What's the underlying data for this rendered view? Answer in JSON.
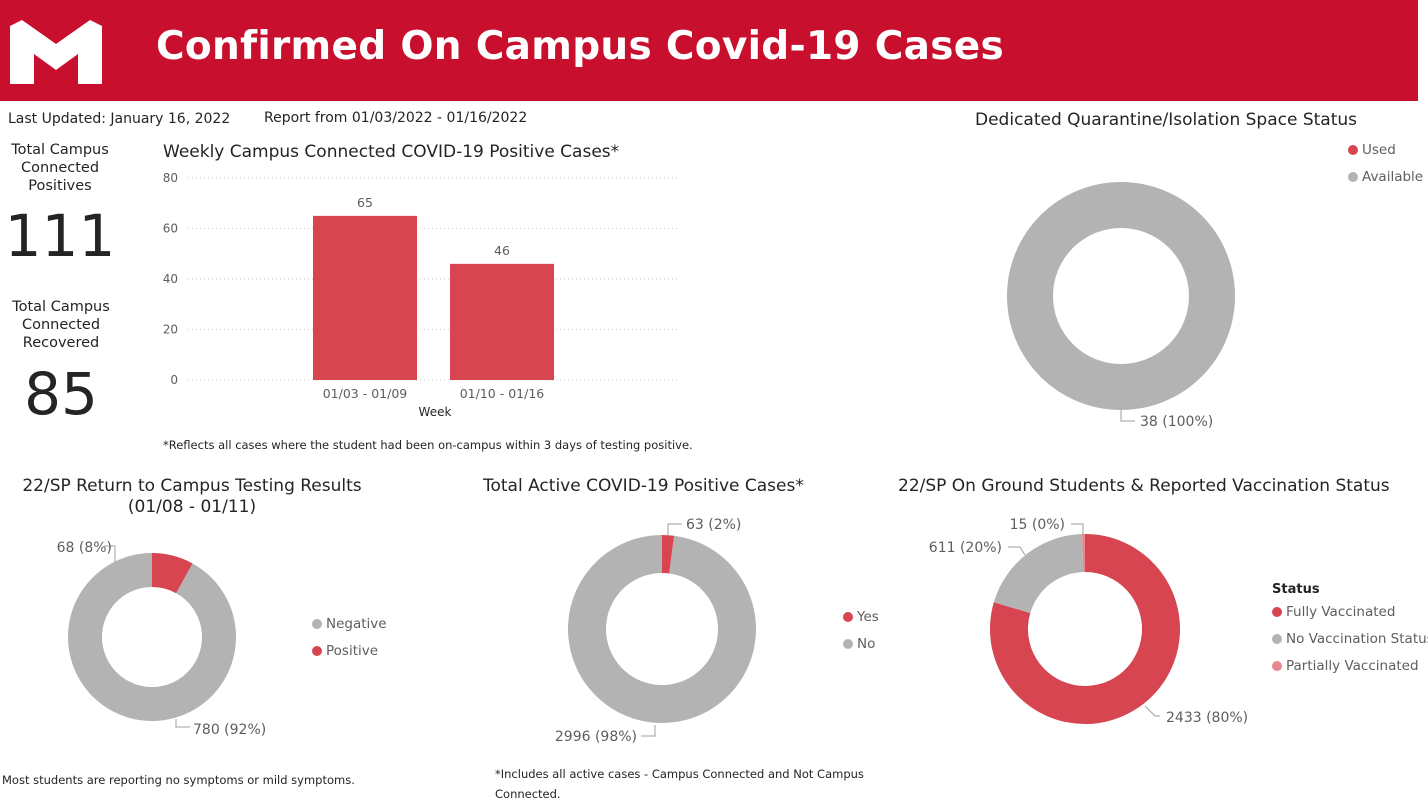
{
  "header": {
    "title": "Confirmed On Campus Covid-19 Cases",
    "logo_icon": "m-logo",
    "brand_color": "#c8102e"
  },
  "meta": {
    "last_updated": "Last Updated: January 16, 2022",
    "report_range": "Report from 01/03/2022 - 01/16/2022"
  },
  "kpis": [
    {
      "label_lines": [
        "Total Campus",
        "Connected",
        "Positives"
      ],
      "value": "111"
    },
    {
      "label_lines": [
        "Total Campus",
        "Connected",
        "Recovered"
      ],
      "value": "85"
    }
  ],
  "notes": {
    "weekly_footnote": "*Reflects all cases where the student had been on-campus within 3 days of testing positive.",
    "symptoms": "Most students are reporting no symptoms or mild symptoms.",
    "active_footnote_lines": [
      "*Includes all active cases - Campus Connected and Not Campus",
      "Connected."
    ]
  },
  "colors": {
    "red": "#d64550",
    "gray": "#b3b3b3",
    "pink": "#e8878f"
  },
  "chart_data": [
    {
      "type": "bar",
      "title": "Weekly Campus Connected COVID-19 Positive Cases*",
      "xlabel": "Week",
      "ylabel": "",
      "categories": [
        "01/03 - 01/09",
        "01/10 - 01/16"
      ],
      "values": [
        65,
        46
      ],
      "ylim": [
        0,
        80
      ],
      "yticks": [
        0,
        20,
        40,
        60,
        80
      ],
      "grid": true,
      "color": "#d64550"
    },
    {
      "type": "pie",
      "title": "Dedicated Quarantine/Isolation Space Status",
      "legend": [
        "Used",
        "Available"
      ],
      "legend_colors": [
        "#d64550",
        "#b3b3b3"
      ],
      "legend_position": "top-right",
      "slices": [
        {
          "name": "Available",
          "value": 38,
          "label": "38 (100%)",
          "color": "#b3b3b3"
        }
      ]
    },
    {
      "type": "pie",
      "title_lines": [
        "22/SP Return to Campus Testing Results",
        "(01/08 - 01/11)"
      ],
      "legend": [
        "Negative",
        "Positive"
      ],
      "legend_colors": [
        "#b3b3b3",
        "#d64550"
      ],
      "legend_position": "right",
      "slices": [
        {
          "name": "Positive",
          "value": 68,
          "label": "68 (8%)",
          "color": "#d64550"
        },
        {
          "name": "Negative",
          "value": 780,
          "label": "780 (92%)",
          "color": "#b3b3b3"
        }
      ]
    },
    {
      "type": "pie",
      "title": "Total Active COVID-19 Positive Cases*",
      "legend": [
        "Yes",
        "No"
      ],
      "legend_colors": [
        "#d64550",
        "#b3b3b3"
      ],
      "legend_position": "right",
      "slices": [
        {
          "name": "Yes",
          "value": 63,
          "label": "63 (2%)",
          "color": "#d64550"
        },
        {
          "name": "No",
          "value": 2996,
          "label": "2996 (98%)",
          "color": "#b3b3b3"
        }
      ]
    },
    {
      "type": "pie",
      "title": "22/SP On Ground Students & Reported Vaccination Status",
      "legend_title": "Status",
      "legend": [
        "Fully Vaccinated",
        "No Vaccination Status",
        "Partially Vaccinated"
      ],
      "legend_colors": [
        "#d64550",
        "#b3b3b3",
        "#e8878f"
      ],
      "legend_position": "right",
      "slices": [
        {
          "name": "Fully Vaccinated",
          "value": 2433,
          "label": "2433 (80%)",
          "color": "#d64550"
        },
        {
          "name": "No Vaccination Status",
          "value": 611,
          "label": "611 (20%)",
          "color": "#b3b3b3"
        },
        {
          "name": "Partially Vaccinated",
          "value": 15,
          "label": "15 (0%)",
          "color": "#e8878f"
        }
      ]
    }
  ]
}
